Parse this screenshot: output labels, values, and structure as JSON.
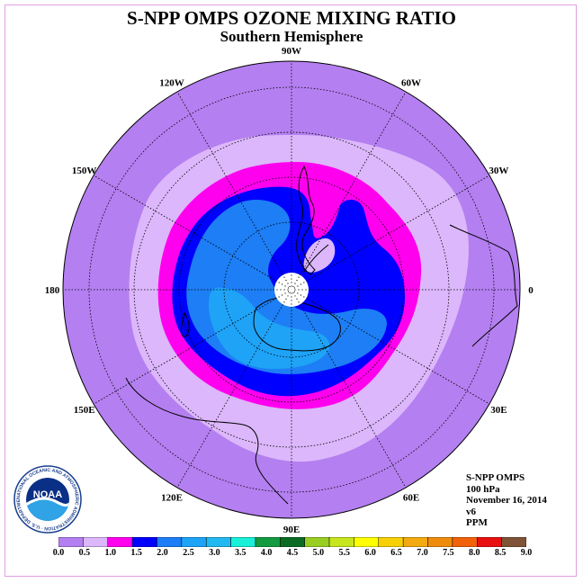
{
  "title": "S-NPP OMPS OZONE MIXING RATIO",
  "subtitle": "Southern Hemisphere",
  "longitude_labels": [
    {
      "label": "90W",
      "lon": -90
    },
    {
      "label": "60W",
      "lon": -60
    },
    {
      "label": "30W",
      "lon": -30
    },
    {
      "label": "0",
      "lon": 0
    },
    {
      "label": "30E",
      "lon": 30
    },
    {
      "label": "60E",
      "lon": 60
    },
    {
      "label": "90E",
      "lon": 90
    },
    {
      "label": "120E",
      "lon": 120
    },
    {
      "label": "150E",
      "lon": 150
    },
    {
      "label": "180",
      "lon": 180
    },
    {
      "label": "150W",
      "lon": -150
    },
    {
      "label": "120W",
      "lon": -120
    }
  ],
  "info": {
    "instrument": "S-NPP OMPS",
    "level": "100 hPa",
    "date": "November 16, 2014",
    "version": "v6",
    "units": "PPM"
  },
  "logo": {
    "text": "NOAA",
    "ring_text": "NATIONAL OCEANIC AND ATMOSPHERIC ADMINISTRATION · U.S. DEPARTMENT OF COMMERCE"
  },
  "legend": {
    "labels": [
      "0.0",
      "0.5",
      "1.0",
      "1.5",
      "2.0",
      "2.5",
      "3.0",
      "3.5",
      "4.0",
      "4.5",
      "5.0",
      "5.5",
      "6.0",
      "6.5",
      "7.0",
      "7.5",
      "8.0",
      "8.5",
      "9.0"
    ],
    "colors": [
      "#b47ff0",
      "#dcb7fb",
      "#ff00ee",
      "#0000ff",
      "#1d7ef5",
      "#1ea3f7",
      "#22b9f0",
      "#18f0d8",
      "#149a40",
      "#0b6b24",
      "#9acd22",
      "#c8e61e",
      "#ffff00",
      "#f7d008",
      "#f3aa10",
      "#ef8c0c",
      "#f2620a",
      "#e81010",
      "#7f5337"
    ]
  },
  "map_colors": {
    "c0": "#b47ff0",
    "c1": "#dcb7fb",
    "c2": "#ff00ee",
    "c3": "#0000ff",
    "c4": "#1d7ef5",
    "c5": "#1ea3f7"
  }
}
